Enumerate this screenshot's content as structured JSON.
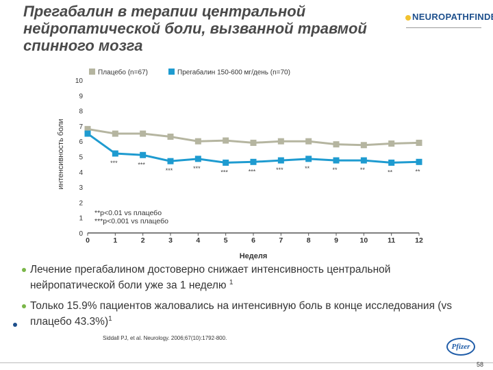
{
  "title": "Прегабалин в терапии центральной\nнейропатической боли, вызванной травмой\nспинного мозга",
  "logo": {
    "text": "NEUROPATHFINDER",
    "color": "#1d4f8c"
  },
  "bullets": [
    {
      "text": "Лечение прегабалином достоверно снижает интенсивность центральной нейропатической боли уже за 1 неделю",
      "sup": "1"
    },
    {
      "text": "Только 15.9% пациентов жаловались на интенсивную боль в конце исследования (vs плацебо 43.3%)",
      "sup": "1"
    }
  ],
  "reference": "Siddall PJ, et al. Neurology. 2006;67(10):1792-800.",
  "pfizer_logo": "Pfizer",
  "page_number": "58",
  "chart_data": {
    "type": "line",
    "ylabel": "интенсивность боли",
    "xlabel": "Неделя",
    "x": [
      0,
      1,
      2,
      3,
      4,
      5,
      6,
      7,
      8,
      9,
      10,
      11,
      12
    ],
    "xlim": [
      0,
      12
    ],
    "ylim": [
      0,
      10
    ],
    "yticks": [
      0,
      1,
      2,
      3,
      4,
      5,
      6,
      7,
      8,
      9,
      10
    ],
    "legend_position": "top",
    "series": [
      {
        "name": "Плацебо (n=67)",
        "color": "#b5b5a0",
        "values": [
          6.8,
          6.5,
          6.5,
          6.3,
          6.0,
          6.05,
          5.9,
          6.0,
          6.0,
          5.8,
          5.75,
          5.85,
          5.9
        ]
      },
      {
        "name": "Прегабалин 150-600 мг/день (n=70)",
        "color": "#1e9bd0",
        "values": [
          6.5,
          5.2,
          5.1,
          4.7,
          4.85,
          4.6,
          4.65,
          4.75,
          4.85,
          4.75,
          4.75,
          4.6,
          4.65
        ]
      }
    ],
    "annotations": [
      {
        "x": 1,
        "text": "***"
      },
      {
        "x": 2,
        "text": "***"
      },
      {
        "x": 3,
        "text": "***"
      },
      {
        "x": 4,
        "text": "***"
      },
      {
        "x": 5,
        "text": "***"
      },
      {
        "x": 6,
        "text": "***"
      },
      {
        "x": 7,
        "text": "***"
      },
      {
        "x": 8,
        "text": "**"
      },
      {
        "x": 9,
        "text": "**"
      },
      {
        "x": 10,
        "text": "**"
      },
      {
        "x": 11,
        "text": "**"
      },
      {
        "x": 12,
        "text": "**"
      }
    ],
    "notes": [
      "**p<0.01 vs плацебо",
      "***p<0.001 vs плацебо"
    ]
  }
}
